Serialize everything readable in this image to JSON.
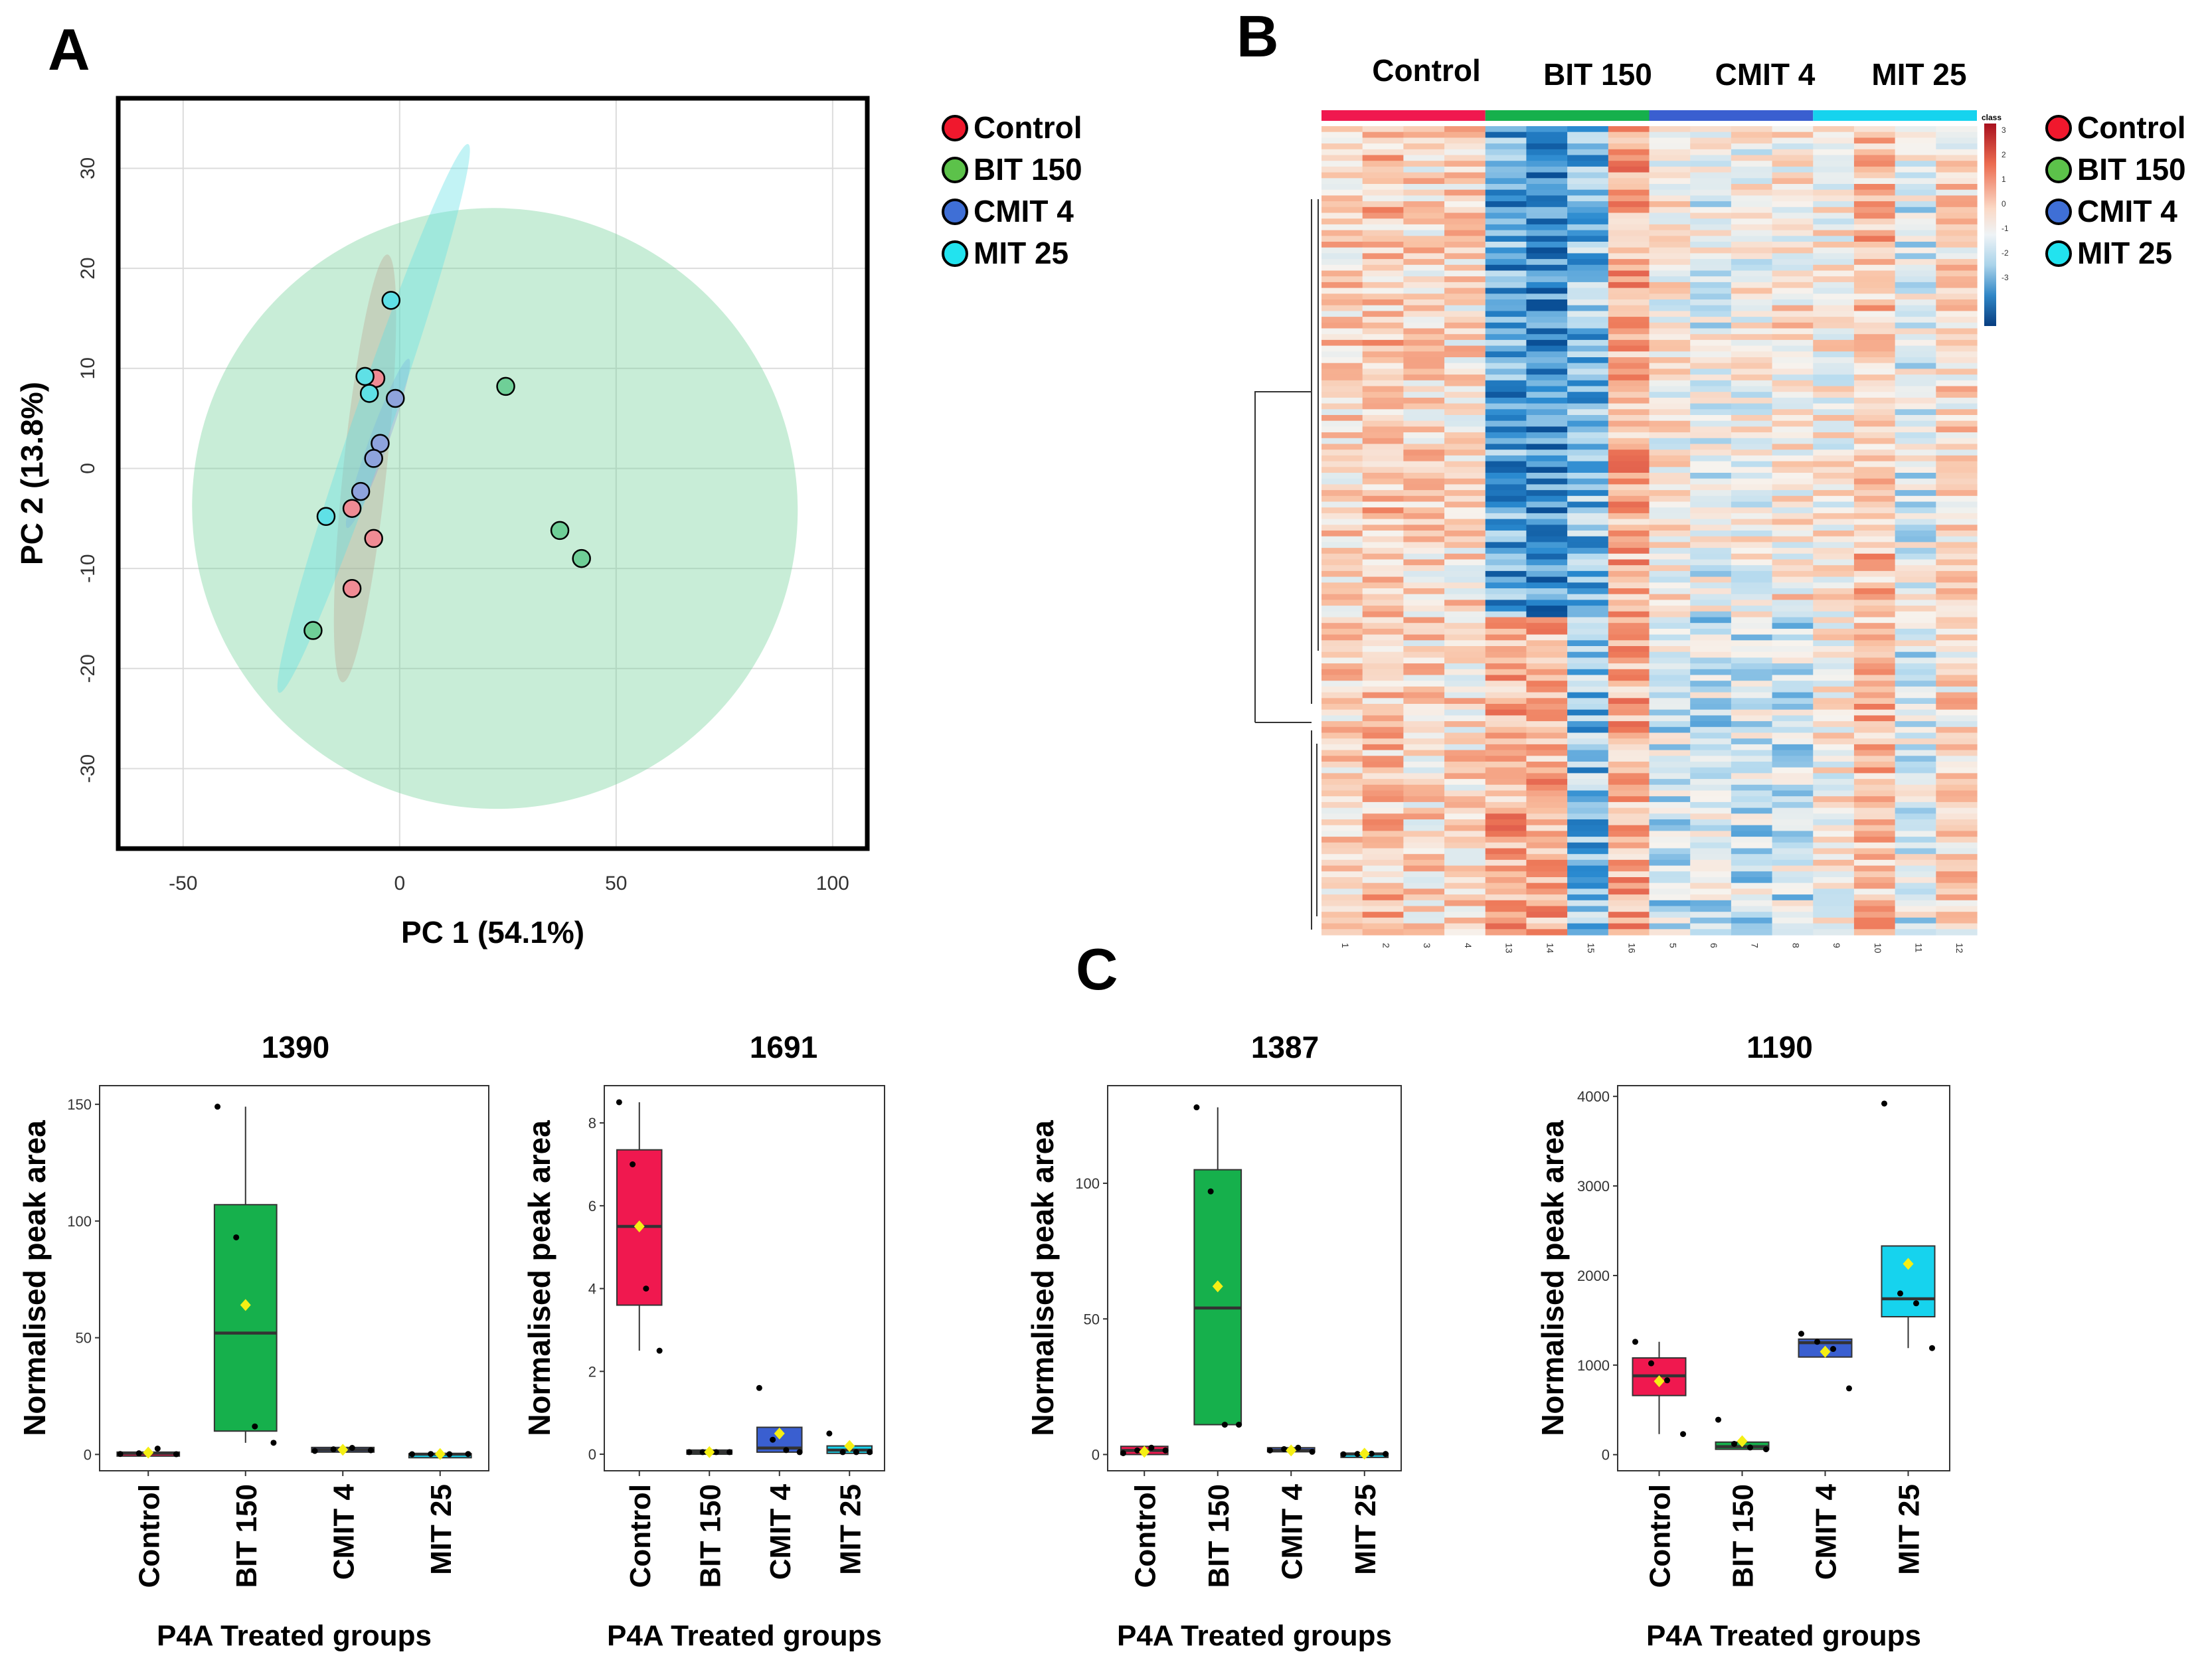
{
  "panel_labels": {
    "a": "A",
    "b": "B",
    "c": "C"
  },
  "legend": [
    {
      "label": "Control",
      "color": "#f0182d"
    },
    {
      "label": "BIT 150",
      "color": "#5cc24a"
    },
    {
      "label": "CMIT 4",
      "color": "#3f6fd6"
    },
    {
      "label": "MIT 25",
      "color": "#22e3ef"
    }
  ],
  "chart_data": [
    {
      "id": "pca",
      "type": "scatter",
      "xlabel": "PC 1 (54.1%)",
      "ylabel": "PC 2 (13.8%)",
      "xlim": [
        -65,
        108
      ],
      "ylim": [
        -38,
        37
      ],
      "xticks": [
        -50,
        0,
        50,
        100
      ],
      "yticks": [
        -30,
        -20,
        -10,
        0,
        10,
        20,
        30
      ],
      "xtick_labels": [
        "-50",
        "0",
        "50",
        "100"
      ],
      "ytick_labels": [
        "-30",
        "-20",
        "-10",
        "0",
        "10",
        "20",
        "30"
      ],
      "series": [
        {
          "name": "Control",
          "color": "#f08b94",
          "points": [
            [
              -5.5,
              9
            ],
            [
              -11,
              -4
            ],
            [
              -6,
              -7
            ],
            [
              -11,
              -12
            ]
          ],
          "ellipse": {
            "cx": -8,
            "cy": 0,
            "rx": 5,
            "ry": 21.5,
            "angle": 6
          }
        },
        {
          "name": "BIT 150",
          "color": "#6fcf97",
          "points": [
            [
              24.5,
              8.2
            ],
            [
              37,
              -6.2
            ],
            [
              42,
              -9
            ],
            [
              -20,
              -16.2
            ]
          ],
          "ellipse": {
            "cx": 22,
            "cy": -4,
            "rx": 70,
            "ry": 30,
            "angle": 18
          }
        },
        {
          "name": "CMIT 4",
          "color": "#8ea3dc",
          "points": [
            [
              -1,
              7
            ],
            [
              -4.5,
              2.5
            ],
            [
              -6,
              1
            ],
            [
              -9,
              -2.3
            ]
          ],
          "ellipse": {
            "cx": -5,
            "cy": 2.5,
            "rx": 2.2,
            "ry": 9,
            "angle": 20
          }
        },
        {
          "name": "MIT 25",
          "color": "#5fe0e6",
          "points": [
            [
              -2,
              16.8
            ],
            [
              -8,
              9.2
            ],
            [
              -7,
              7.5
            ],
            [
              -17,
              -4.8
            ]
          ],
          "ellipse": {
            "cx": -6,
            "cy": 5,
            "rx": 4.5,
            "ry": 29,
            "angle": 19
          }
        }
      ]
    },
    {
      "id": "heatmap",
      "type": "heatmap",
      "group_labels": [
        "Control",
        "BIT 150",
        "CMIT 4",
        "MIT 25"
      ],
      "group_colors": [
        "#f0184f",
        "#16b04c",
        "#3a5fd0",
        "#16d3ee"
      ],
      "columns": [
        "1",
        "2",
        "3",
        "4",
        "13",
        "14",
        "15",
        "16",
        "5",
        "6",
        "7",
        "8",
        "9",
        "10",
        "11",
        "12"
      ],
      "column_bias": [
        0.6,
        0.9,
        0.5,
        0.5,
        -1.8,
        -2.2,
        -1.3,
        1.2,
        0.1,
        -0.3,
        0.0,
        0.3,
        0.1,
        1.0,
        -0.4,
        0.5
      ],
      "scale_title": "class",
      "scale_ticks": [
        "3",
        "2",
        "1",
        "0",
        "-1",
        "-2",
        "-3"
      ],
      "colorscale": [
        "#0a4f96",
        "#2a8ad0",
        "#b9dcef",
        "#f7f3ee",
        "#f9c1a3",
        "#ee7a5a",
        "#c21d2a"
      ]
    },
    {
      "id": "box1390",
      "type": "box",
      "title": "1390",
      "ylabel": "Normalised peak area",
      "xlabel": "P4A Treated groups",
      "categories": [
        "Control",
        "BIT 150",
        "CMIT 4",
        "MIT  25"
      ],
      "ylim": [
        -7,
        158
      ],
      "yticks": [
        0,
        50,
        100,
        150
      ],
      "ytick_labels": [
        "0",
        "50",
        "100",
        "150"
      ],
      "colors": [
        "#f0184f",
        "#16b04c",
        "#3a5fd0",
        "#16d3ee"
      ],
      "boxes": [
        {
          "q1": 0,
          "median": 0.5,
          "q3": 1,
          "wmin": 0,
          "wmax": 1,
          "mean": 0.8,
          "points": [
            0.2,
            0.5,
            2.5,
            0.1
          ]
        },
        {
          "q1": 10,
          "median": 52,
          "q3": 107,
          "wmin": 5,
          "wmax": 149,
          "mean": 64,
          "points": [
            149,
            93,
            12,
            5
          ]
        },
        {
          "q1": 1,
          "median": 2,
          "q3": 3,
          "wmin": 1,
          "wmax": 3,
          "mean": 2,
          "points": [
            1.5,
            2.2,
            2.8,
            1.8
          ]
        },
        {
          "q1": 0,
          "median": 0.1,
          "q3": 0.3,
          "wmin": 0,
          "wmax": 0.3,
          "mean": 0.2,
          "points": [
            0.1,
            0.2,
            0.1,
            0.2
          ]
        }
      ]
    },
    {
      "id": "box1691",
      "type": "box",
      "title": "1691",
      "ylabel": "Normalised peak area",
      "xlabel": "P4A Treated groups",
      "categories": [
        "Control",
        "BIT 150",
        "CMIT 4",
        "MIT  25"
      ],
      "ylim": [
        -0.4,
        8.9
      ],
      "yticks": [
        0,
        2,
        4,
        6,
        8
      ],
      "ytick_labels": [
        "0",
        "2",
        "4",
        "6",
        "8"
      ],
      "colors": [
        "#f0184f",
        "#16b04c",
        "#3a5fd0",
        "#16d3ee"
      ],
      "boxes": [
        {
          "q1": 3.6,
          "median": 5.5,
          "q3": 7.35,
          "wmin": 2.5,
          "wmax": 8.5,
          "mean": 5.5,
          "points": [
            8.5,
            7.0,
            4.0,
            2.5
          ]
        },
        {
          "q1": 0,
          "median": 0.05,
          "q3": 0.1,
          "wmin": 0,
          "wmax": 0.1,
          "mean": 0.05,
          "points": [
            0.05,
            0.05,
            0.05,
            0.05
          ]
        },
        {
          "q1": 0.05,
          "median": 0.15,
          "q3": 0.65,
          "wmin": 0.05,
          "wmax": 0.65,
          "mean": 0.5,
          "points": [
            1.6,
            0.35,
            0.1,
            0.05
          ]
        },
        {
          "q1": 0.02,
          "median": 0.1,
          "q3": 0.2,
          "wmin": 0.02,
          "wmax": 0.2,
          "mean": 0.2,
          "points": [
            0.5,
            0.05,
            0.05,
            0.05
          ]
        }
      ]
    },
    {
      "id": "box1387",
      "type": "box",
      "title": "1387",
      "ylabel": "Normalised peak area",
      "xlabel": "P4A Treated groups",
      "categories": [
        "Control",
        "BIT 150",
        "CMIT 4",
        "MIT  25"
      ],
      "ylim": [
        -6,
        136
      ],
      "yticks": [
        0,
        50,
        100
      ],
      "ytick_labels": [
        "0",
        "50",
        "100"
      ],
      "colors": [
        "#f0184f",
        "#16b04c",
        "#3a5fd0",
        "#16d3ee"
      ],
      "boxes": [
        {
          "q1": 0,
          "median": 1.5,
          "q3": 3,
          "wmin": 0,
          "wmax": 3,
          "mean": 1,
          "points": [
            0.5,
            1.5,
            2.5,
            1.5
          ]
        },
        {
          "q1": 11,
          "median": 54,
          "q3": 105,
          "wmin": 11,
          "wmax": 128,
          "mean": 62,
          "points": [
            128,
            97,
            11,
            11
          ]
        },
        {
          "q1": 1,
          "median": 1.5,
          "q3": 2.5,
          "wmin": 1,
          "wmax": 2.5,
          "mean": 1.5,
          "points": [
            1.5,
            2,
            2.5,
            1
          ]
        },
        {
          "q1": 0,
          "median": 0.2,
          "q3": 0.4,
          "wmin": 0,
          "wmax": 0.4,
          "mean": 0.3,
          "points": [
            0.1,
            0.2,
            0.3,
            0.2
          ]
        }
      ]
    },
    {
      "id": "box1190",
      "type": "box",
      "title": "1190",
      "ylabel": "Normalised peak area",
      "xlabel": "P4A Treated groups",
      "categories": [
        "Control",
        "BIT 150",
        "CMIT 4",
        "MIT  25"
      ],
      "ylim": [
        -180,
        4120
      ],
      "yticks": [
        0,
        1000,
        2000,
        3000,
        4000
      ],
      "ytick_labels": [
        "0",
        "1000",
        "2000",
        "3000",
        "4000"
      ],
      "colors": [
        "#f0184f",
        "#16b04c",
        "#3a5fd0",
        "#16d3ee"
      ],
      "boxes": [
        {
          "q1": 660,
          "median": 880,
          "q3": 1080,
          "wmin": 230,
          "wmax": 1260,
          "mean": 820,
          "points": [
            1260,
            1020,
            830,
            230
          ]
        },
        {
          "q1": 60,
          "median": 90,
          "q3": 140,
          "wmin": 60,
          "wmax": 140,
          "mean": 150,
          "points": [
            390,
            120,
            80,
            60
          ]
        },
        {
          "q1": 1090,
          "median": 1250,
          "q3": 1290,
          "wmin": 1090,
          "wmax": 1290,
          "mean": 1150,
          "points": [
            1350,
            1260,
            1180,
            740
          ]
        },
        {
          "q1": 1540,
          "median": 1740,
          "q3": 2330,
          "wmin": 1190,
          "wmax": 2330,
          "mean": 2130,
          "points": [
            3920,
            1800,
            1690,
            1190
          ]
        }
      ]
    }
  ]
}
